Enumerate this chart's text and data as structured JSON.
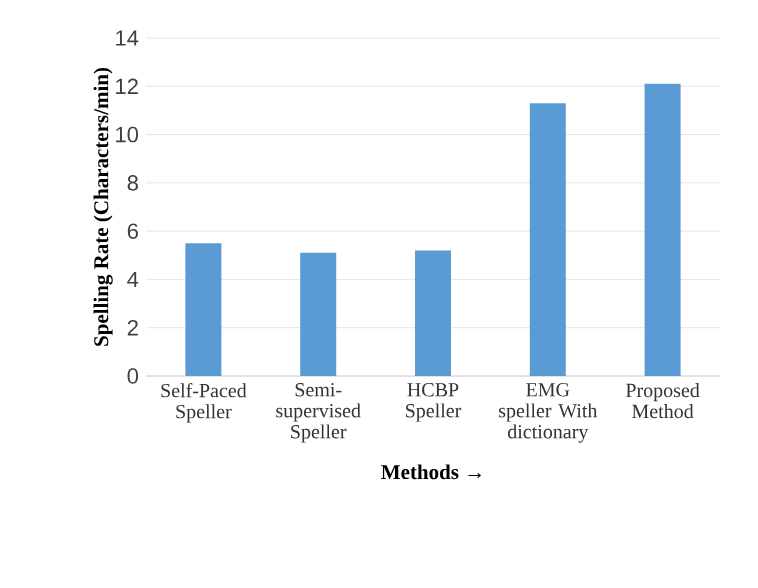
{
  "chart_data": {
    "type": "bar",
    "xlabel": "Methods →",
    "ylabel": "Spelling Rate (Characters/min)",
    "categories": [
      "Self-Paced Speller",
      "Semi-supervised Speller",
      "HCBP Speller",
      "EMG speller With dictionary",
      "Proposed Method"
    ],
    "values": [
      5.5,
      5.1,
      5.2,
      11.3,
      12.1
    ],
    "color": "#5b9bd5",
    "ylim": [
      0,
      14
    ],
    "yticks": [
      0,
      2,
      4,
      6,
      8,
      10,
      12,
      14
    ],
    "grid": "y"
  }
}
